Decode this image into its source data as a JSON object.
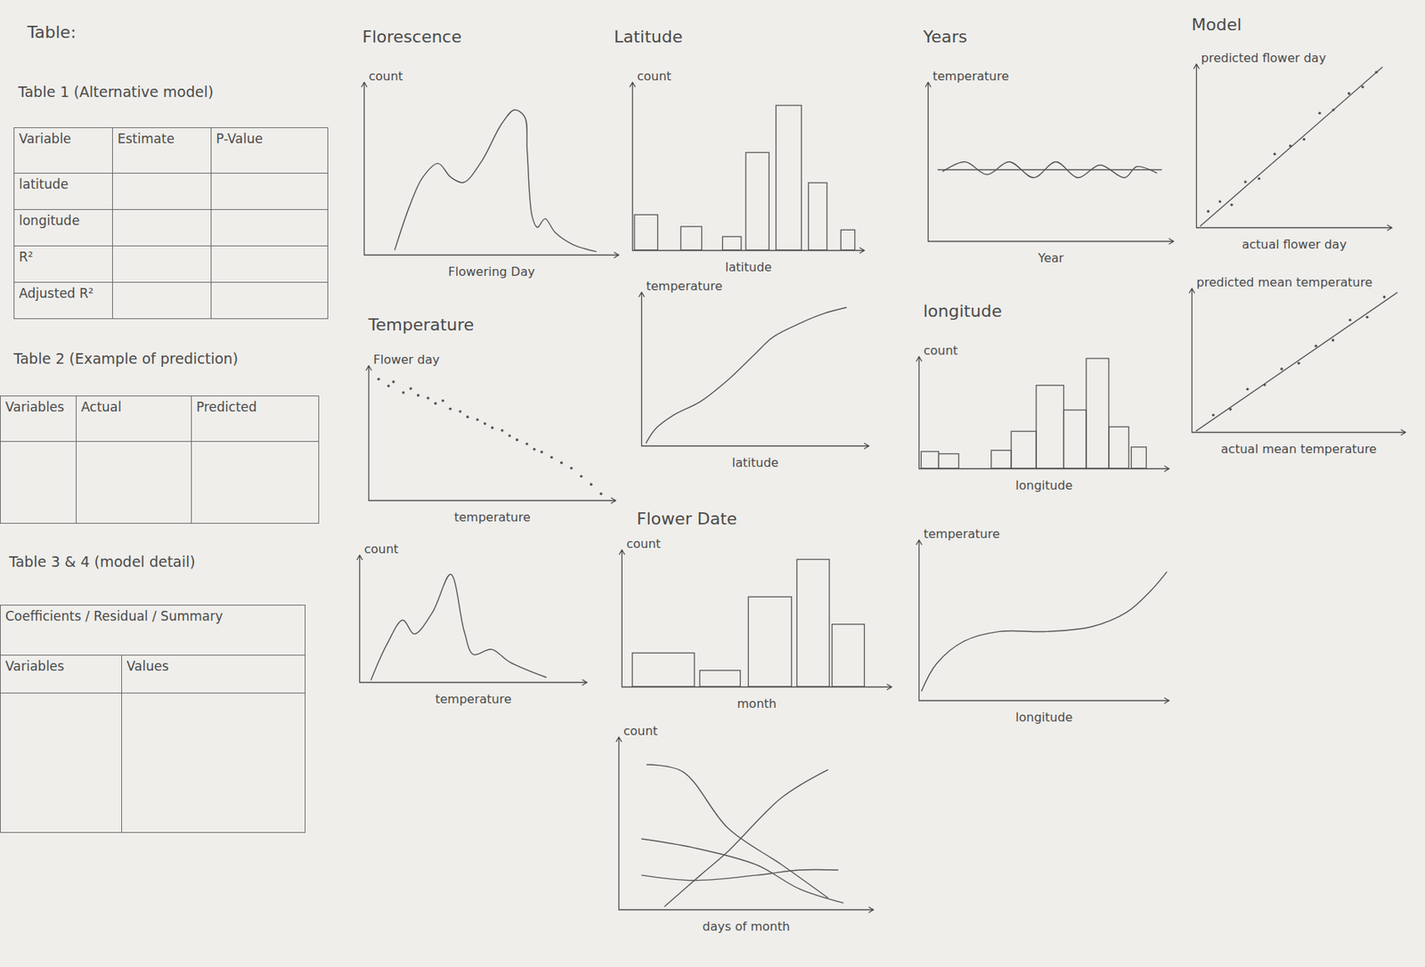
{
  "heading": "Table:",
  "tables": [
    {
      "title": "Table 1 (Alternative model)",
      "columns": [
        "Variable",
        "Estimate",
        "P-Value"
      ],
      "row_labels": [
        "latitude",
        "longitude",
        "R²",
        "Adjusted R²"
      ]
    },
    {
      "title": "Table 2 (Example of prediction)",
      "columns": [
        "Variables",
        "Actual",
        "Predicted"
      ]
    },
    {
      "title": "Table 3 & 4 (model detail)",
      "subheader": "Coefficients / Residual / Summary",
      "columns": [
        "Variables",
        "Values"
      ]
    }
  ],
  "chart_data": [
    {
      "type": "line",
      "title": "Florescence",
      "x_label": "Flowering Day",
      "y_label": "count",
      "color": "#555555",
      "xlim": [
        0,
        100
      ],
      "ylim": [
        0,
        100
      ],
      "tick_labels": false,
      "x": [
        12,
        18,
        23,
        29,
        34,
        39,
        46,
        54,
        59,
        63,
        64,
        66,
        68,
        71,
        75,
        82,
        91
      ],
      "values": [
        3,
        29,
        45,
        53,
        45,
        42,
        54,
        76,
        84,
        80,
        60,
        22,
        16,
        21,
        13,
        6,
        2
      ]
    },
    {
      "type": "scatter",
      "title": "Temperature",
      "x_label": "temperature",
      "y_label": "Flower day",
      "color": "#555555",
      "xlim": [
        0,
        100
      ],
      "ylim": [
        0,
        100
      ],
      "tick_labels": false,
      "x": [
        4,
        8,
        10,
        14,
        17,
        20,
        24,
        27,
        30,
        33,
        37,
        40,
        44,
        47,
        50,
        54,
        57,
        60,
        64,
        67,
        70,
        74,
        78,
        82,
        86,
        90,
        94
      ],
      "values": [
        90,
        85,
        88,
        80,
        83,
        78,
        76,
        72,
        74,
        68,
        66,
        62,
        60,
        57,
        54,
        52,
        48,
        45,
        42,
        38,
        36,
        32,
        28,
        24,
        18,
        12,
        5
      ]
    },
    {
      "type": "line",
      "x_label": "temperature",
      "y_label": "count",
      "color": "#555555",
      "xlim": [
        0,
        100
      ],
      "ylim": [
        0,
        100
      ],
      "tick_labels": false,
      "x": [
        5,
        12,
        19,
        24,
        32,
        40,
        46,
        50,
        58,
        66,
        82
      ],
      "values": [
        2,
        30,
        49,
        38,
        55,
        85,
        40,
        22,
        26,
        16,
        4
      ]
    },
    {
      "type": "histogram",
      "title": "Latitude",
      "x_label": "latitude",
      "y_label": "count",
      "color": "#555555",
      "xlim": [
        0,
        100
      ],
      "ylim": [
        0,
        100
      ],
      "tick_labels": false,
      "bins": [
        1,
        11,
        21,
        30,
        39,
        47,
        49,
        59,
        62,
        73,
        76,
        84,
        90,
        96
      ],
      "counts": [
        21,
        0,
        14,
        0,
        8,
        0,
        58,
        0,
        86,
        0,
        40,
        0,
        12
      ]
    },
    {
      "type": "line",
      "x_label": "latitude",
      "y_label": "temperature",
      "color": "#555555",
      "xlim": [
        0,
        100
      ],
      "ylim": [
        0,
        100
      ],
      "tick_labels": false,
      "x": [
        2,
        6,
        14,
        26,
        38,
        50,
        58,
        70,
        80,
        90
      ],
      "values": [
        2,
        11,
        20,
        29,
        43,
        60,
        71,
        80,
        86,
        90
      ]
    },
    {
      "type": "histogram",
      "title": "Flower Date",
      "x_label": "month",
      "y_label": "count",
      "color": "#555555",
      "xlim": [
        0,
        100
      ],
      "ylim": [
        0,
        110
      ],
      "tick_labels": false,
      "bins": [
        4,
        27,
        29,
        44,
        47,
        63,
        65,
        77,
        78,
        90
      ],
      "counts": [
        27,
        0,
        13,
        0,
        72,
        0,
        102,
        0,
        50
      ]
    },
    {
      "type": "line",
      "x_label": "days of month",
      "y_label": "count",
      "color": "#555555",
      "xlim": [
        0,
        100
      ],
      "ylim": [
        0,
        100
      ],
      "tick_labels": false,
      "series": [
        {
          "x": [
            11,
            25,
            43,
            64,
            82
          ],
          "values": [
            84,
            80,
            47,
            26,
            7
          ]
        },
        {
          "x": [
            18,
            32,
            43,
            64,
            82
          ],
          "values": [
            2,
            20,
            34,
            65,
            81
          ]
        },
        {
          "x": [
            9,
            29,
            54,
            71,
            88
          ],
          "values": [
            41,
            36,
            26,
            12,
            4
          ]
        },
        {
          "x": [
            9,
            29,
            54,
            71,
            86
          ],
          "values": [
            20,
            17,
            20,
            23,
            23
          ]
        }
      ]
    },
    {
      "type": "line",
      "title": "Years",
      "x_label": "Year",
      "y_label": "temperature",
      "color": "#555555",
      "xlim": [
        0,
        100
      ],
      "ylim": [
        0,
        100
      ],
      "tick_labels": false,
      "series": [
        {
          "x": [
            6,
            15,
            24,
            33,
            43,
            52,
            61,
            70,
            80,
            85,
            93
          ],
          "values": [
            44,
            50,
            42,
            50,
            40,
            50,
            40,
            48,
            40,
            47,
            43
          ]
        },
        {
          "x": [
            4,
            95
          ],
          "values": [
            45,
            45
          ]
        }
      ]
    },
    {
      "type": "histogram",
      "title": "longitude",
      "x_label": "longitude",
      "y_label": "count",
      "color": "#555555",
      "xlim": [
        0,
        100
      ],
      "ylim": [
        0,
        100
      ],
      "tick_labels": false,
      "bins": [
        1,
        8,
        16,
        29,
        37,
        47,
        58,
        67,
        76,
        84,
        85,
        91
      ],
      "counts": [
        15,
        13,
        0,
        16,
        33,
        74,
        52,
        98,
        37,
        0,
        19
      ]
    },
    {
      "type": "line",
      "x_label": "longitude",
      "y_label": "temperature",
      "color": "#555555",
      "xlim": [
        0,
        100
      ],
      "ylim": [
        0,
        100
      ],
      "tick_labels": false,
      "x": [
        1,
        7,
        18,
        32,
        51,
        69,
        83,
        93,
        99
      ],
      "values": [
        6,
        23,
        37,
        43,
        43,
        46,
        55,
        69,
        80
      ]
    },
    {
      "type": "scatter",
      "title": "Model",
      "x_label": "actual flower day",
      "y_label": "predicted flower day",
      "color": "#555555",
      "xlim": [
        0,
        100
      ],
      "ylim": [
        0,
        100
      ],
      "tick_labels": false,
      "series": [
        {
          "type": "scatter",
          "x": [
            6,
            12,
            18,
            25,
            32,
            40,
            48,
            55,
            63,
            70,
            78,
            85,
            92
          ],
          "values": [
            10,
            16,
            14,
            28,
            30,
            45,
            50,
            54,
            70,
            72,
            82,
            86,
            95
          ]
        },
        {
          "type": "line",
          "x": [
            2,
            95
          ],
          "values": [
            1,
            98
          ]
        }
      ]
    },
    {
      "type": "scatter",
      "x_label": "actual mean temperature",
      "y_label": "predicted mean temperature",
      "color": "#555555",
      "xlim": [
        0,
        100
      ],
      "ylim": [
        0,
        100
      ],
      "tick_labels": false,
      "series": [
        {
          "type": "scatter",
          "x": [
            10,
            18,
            26,
            34,
            42,
            50,
            58,
            66,
            74,
            82,
            90
          ],
          "values": [
            12,
            16,
            30,
            33,
            44,
            48,
            60,
            64,
            78,
            80,
            94
          ]
        },
        {
          "type": "line",
          "x": [
            2,
            96
          ],
          "values": [
            1,
            97
          ]
        }
      ]
    }
  ]
}
